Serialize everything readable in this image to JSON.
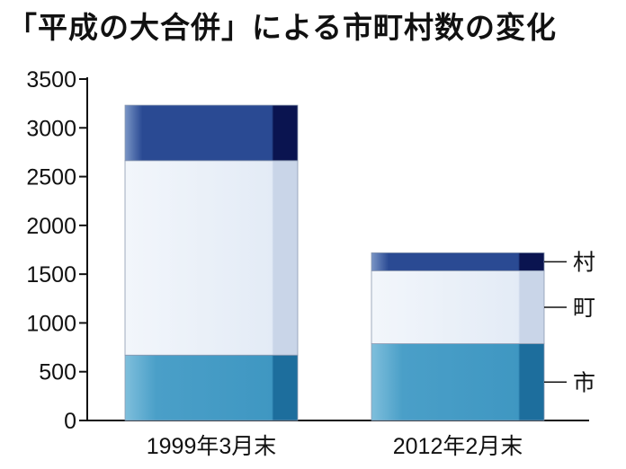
{
  "chart_data": {
    "type": "bar",
    "stacked": true,
    "title": "「平成の大合併」による市町村数の変化",
    "categories": [
      "1999年3月末",
      "2012年2月末"
    ],
    "series": [
      {
        "name": "市",
        "values": [
          670,
          787
        ],
        "color": "#4a9fc8"
      },
      {
        "name": "町",
        "values": [
          1994,
          748
        ],
        "color": "#e3ebf6"
      },
      {
        "name": "村",
        "values": [
          568,
          184
        ],
        "color": "#2a4a93"
      }
    ],
    "ylim": [
      0,
      3500
    ],
    "yticks": [
      0,
      500,
      1000,
      1500,
      2000,
      2500,
      3000,
      3500
    ],
    "xlabel": "",
    "ylabel": "",
    "grid": false,
    "legend": "right, next to second bar"
  }
}
